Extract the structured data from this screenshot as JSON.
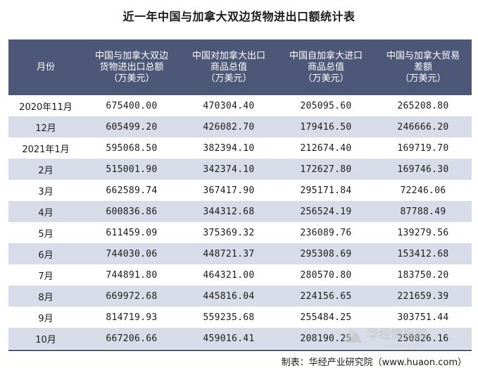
{
  "title": "近一年中国与加拿大双边货物进出口额统计表",
  "table": {
    "headers": [
      [
        "月份"
      ],
      [
        "中国与加拿大双边",
        "货物进出口总额",
        "（万美元）"
      ],
      [
        "中国对加拿大出口",
        "商品总值",
        "（万美元）"
      ],
      [
        "中国自加拿大进口",
        "商品总值",
        "（万美元）"
      ],
      [
        "中国与加拿大贸易",
        "差额",
        "（万美元）"
      ]
    ],
    "rows": [
      [
        "2020年11月",
        "675400.00",
        "470304.40",
        "205095.60",
        "265208.80"
      ],
      [
        "12月",
        "605499.20",
        "426082.70",
        "179416.50",
        "246666.20"
      ],
      [
        "2021年1月",
        "595068.50",
        "382394.10",
        "212674.40",
        "169719.70"
      ],
      [
        "2月",
        "515001.90",
        "342374.10",
        "172627.80",
        "169746.30"
      ],
      [
        "3月",
        "662589.74",
        "367417.90",
        "295171.84",
        "72246.06"
      ],
      [
        "4月",
        "600836.86",
        "344312.68",
        "256524.19",
        "87788.49"
      ],
      [
        "5月",
        "611459.09",
        "375369.32",
        "236089.76",
        "139279.56"
      ],
      [
        "6月",
        "744030.06",
        "448721.37",
        "295308.69",
        "153412.68"
      ],
      [
        "7月",
        "744891.80",
        "464321.00",
        "280570.80",
        "183750.20"
      ],
      [
        "8月",
        "669972.68",
        "445816.04",
        "224156.65",
        "221659.39"
      ],
      [
        "9月",
        "814719.93",
        "559235.68",
        "255484.25",
        "303751.44"
      ],
      [
        "10月",
        "667206.66",
        "459016.41",
        "208190.25",
        "250826.16"
      ]
    ]
  },
  "source": "制表：华经产业研究院（www.huaon.com）",
  "watermark": {
    "brand": "华经情报网",
    "url": "huaon.com"
  },
  "colors": {
    "header_bg": "#4d5879",
    "stripe_bg": "#d8dce8",
    "watermark": "#c9c9c9"
  }
}
